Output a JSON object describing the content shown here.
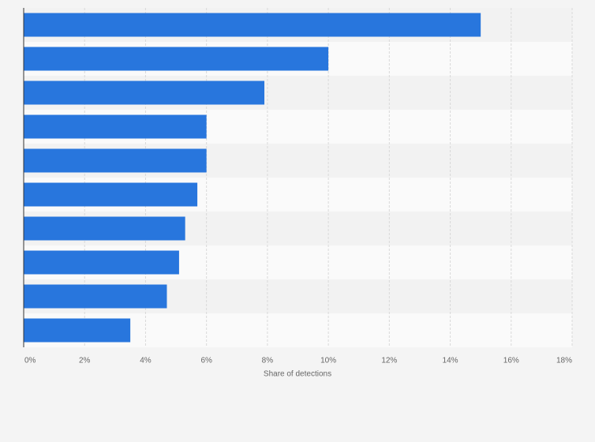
{
  "chart_data": {
    "type": "bar",
    "orientation": "horizontal",
    "categories": [
      null,
      null,
      null,
      null,
      null,
      null,
      null,
      null,
      null,
      null
    ],
    "values": [
      15,
      10,
      7.9,
      6,
      6,
      5.7,
      5.3,
      5.1,
      4.7,
      3.5
    ],
    "color": "#2876dd",
    "xlabel": "Share of detections",
    "xlim": [
      0,
      18
    ],
    "xticks": [
      {
        "value": 0,
        "label": "0%"
      },
      {
        "value": 2,
        "label": "2%"
      },
      {
        "value": 4,
        "label": "4%"
      },
      {
        "value": 6,
        "label": "6%"
      },
      {
        "value": 8,
        "label": "8%"
      },
      {
        "value": 10,
        "label": "10%"
      },
      {
        "value": 12,
        "label": "12%"
      },
      {
        "value": 14,
        "label": "14%"
      },
      {
        "value": 16,
        "label": "16%"
      },
      {
        "value": 18,
        "label": "18%"
      }
    ],
    "grid": true
  }
}
